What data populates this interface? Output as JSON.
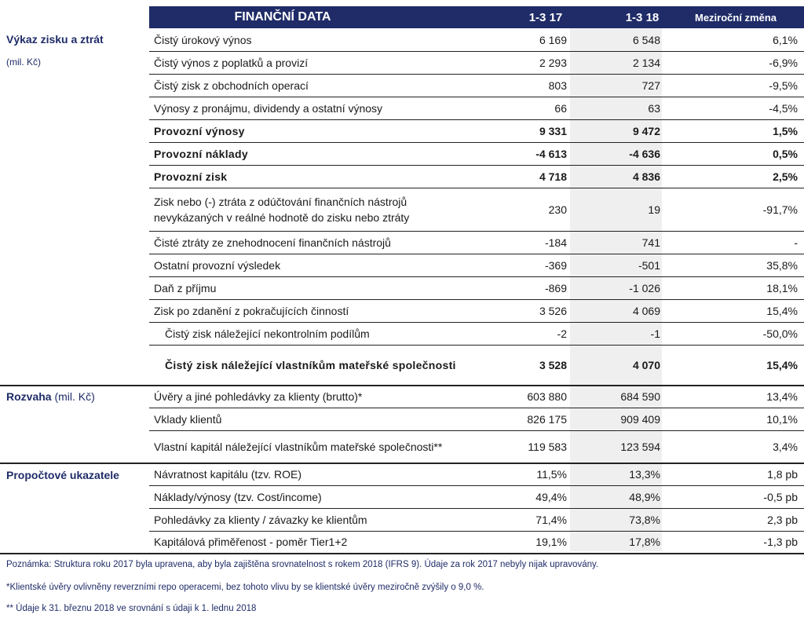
{
  "header": {
    "title": "FINANČNÍ DATA",
    "col1": "1-3 17",
    "col2": "1-3 18",
    "col3": "Meziroční změna"
  },
  "sections": {
    "pl_title": "Výkaz zisku a ztrát",
    "pl_unit": "(mil. Kč)",
    "bs_title": "Rozvaha",
    "bs_unit": "(mil. Kč)",
    "ratios_title": "Propočtové ukazatele"
  },
  "rows": [
    {
      "label": "Čistý úrokový výnos",
      "v1": "6 169",
      "v2": "6 548",
      "chg": "6,1%"
    },
    {
      "label": "Čistý výnos z poplatků a provizí",
      "v1": "2 293",
      "v2": "2 134",
      "chg": "-6,9%"
    },
    {
      "label": "Čistý zisk z obchodních operací",
      "v1": "803",
      "v2": "727",
      "chg": "-9,5%"
    },
    {
      "label": "Výnosy z pronájmu, dividendy a ostatní výnosy",
      "v1": "66",
      "v2": "63",
      "chg": "-4,5%"
    },
    {
      "label": "Provozní výnosy",
      "v1": "9 331",
      "v2": "9 472",
      "chg": "1,5%"
    },
    {
      "label": "Provozní náklady",
      "v1": "-4 613",
      "v2": "-4 636",
      "chg": "0,5%"
    },
    {
      "label": "Provozní zisk",
      "v1": "4 718",
      "v2": "4 836",
      "chg": "2,5%"
    },
    {
      "label": "Zisk nebo (-) ztráta z odúčtování finančních nástrojů nevykázaných v reálné hodnotě do zisku nebo ztráty",
      "v1": "230",
      "v2": "19",
      "chg": "-91,7%"
    },
    {
      "label": "Čisté ztráty ze znehodnocení finančních nástrojů",
      "v1": "-184",
      "v2": "741",
      "chg": "-"
    },
    {
      "label": "Ostatní provozní výsledek",
      "v1": "-369",
      "v2": "-501",
      "chg": "35,8%"
    },
    {
      "label": "Daň z příjmu",
      "v1": "-869",
      "v2": "-1 026",
      "chg": "18,1%"
    },
    {
      "label": "Zisk po zdanění z pokračujících činností",
      "v1": "3 526",
      "v2": "4 069",
      "chg": "15,4%"
    },
    {
      "label": "Čistý zisk náležející nekontrolním podílům",
      "v1": "-2",
      "v2": "-1",
      "chg": "-50,0%"
    },
    {
      "label": "Čistý zisk náležející vlastníkům mateřské společnosti",
      "v1": "3 528",
      "v2": "4 070",
      "chg": "15,4%"
    },
    {
      "label": "Úvěry a jiné pohledávky za klienty (brutto)*",
      "v1": "603 880",
      "v2": "684 590",
      "chg": "13,4%"
    },
    {
      "label": "Vklady klientů",
      "v1": "826 175",
      "v2": "909 409",
      "chg": "10,1%"
    },
    {
      "label": "Vlastní kapitál náležející vlastníkům mateřské společnosti**",
      "v1": "119 583",
      "v2": "123 594",
      "chg": "3,4%"
    },
    {
      "label": "Návratnost kapitálu (tzv. ROE)",
      "v1": "11,5%",
      "v2": "13,3%",
      "chg": "1,8 pb"
    },
    {
      "label": "Náklady/výnosy (tzv. Cost/income)",
      "v1": "49,4%",
      "v2": "48,9%",
      "chg": "-0,5 pb"
    },
    {
      "label": "Pohledávky za klienty / závazky ke klientům",
      "v1": "71,4%",
      "v2": "73,8%",
      "chg": "2,3 pb"
    },
    {
      "label": "Kapitálová přiměřenost - poměr Tier1+2",
      "v1": "19,1%",
      "v2": "17,8%",
      "chg": "-1,3 pb"
    }
  ],
  "notes": {
    "n1": "Poznámka: Struktura roku 2017 byla upravena, aby byla zajištěna srovnatelnost s rokem 2018 (IFRS 9). Údaje za rok 2017 nebyly nijak upravovány.",
    "n2": "*Klientské úvěry ovlivněny reverzními repo operacemi, bez tohoto vlivu by se klientské úvěry meziročně zvýšily o 9,0 %.",
    "n3": "** Údaje k 31. březnu 2018 ve srovnání s údaji k 1. lednu 2018"
  }
}
